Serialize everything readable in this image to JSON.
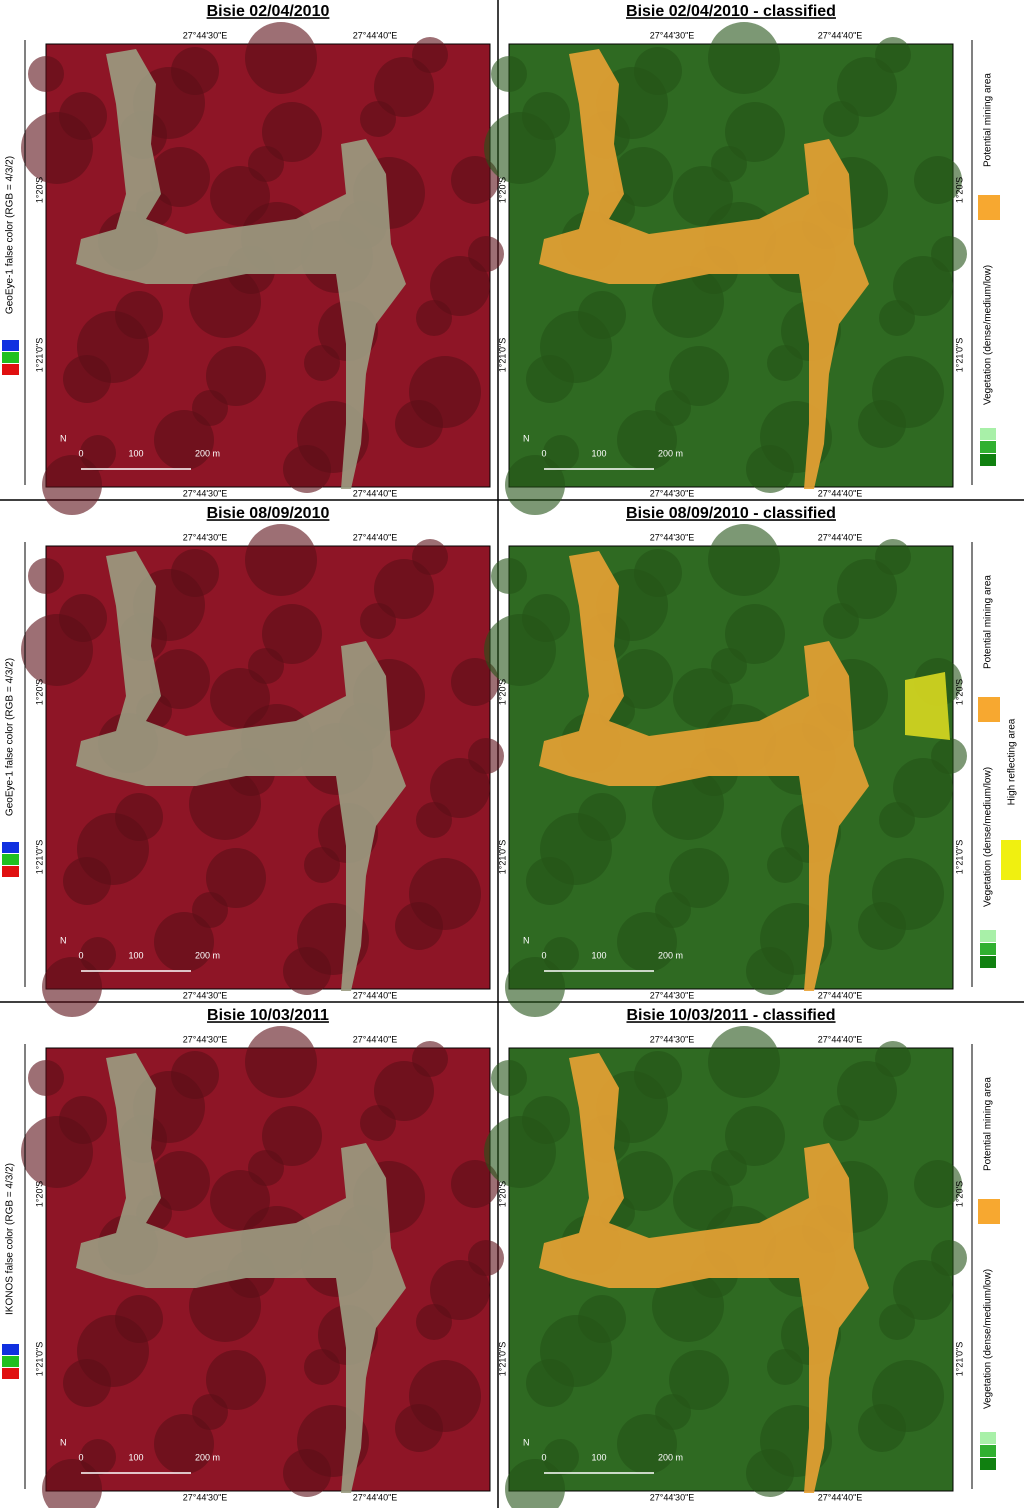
{
  "rows": [
    {
      "left": {
        "title": "Bisie 02/04/2010",
        "sensor": "GeoEye-1 false color (RGB = 4/3/2)"
      },
      "right": {
        "title": "Bisie 02/04/2010 - classified",
        "legend": [
          "Potential mining area",
          "Vegetation (dense/medium/low)"
        ]
      }
    },
    {
      "left": {
        "title": "Bisie 08/09/2010",
        "sensor": "GeoEye-1 false color (RGB = 4/3/2)"
      },
      "right": {
        "title": "Bisie 08/09/2010 - classified",
        "legend": [
          "Potential mining area",
          "Vegetation (dense/medium/low)",
          "High reflecting area"
        ]
      }
    },
    {
      "left": {
        "title": "Bisie 10/03/2011",
        "sensor": "IKONOS false color (RGB = 4/3/2)"
      },
      "right": {
        "title": "Bisie 10/03/2011 - classified",
        "legend": [
          "Potential mining area",
          "Vegetation (dense/medium/low)"
        ]
      }
    }
  ],
  "coordinates": {
    "lon": [
      "27°44'30\"E",
      "27°44'40\"E"
    ],
    "lat": [
      "1°20'S",
      "1°21'0\"S"
    ]
  },
  "scale_bar": {
    "north": "N",
    "labels": [
      "0",
      "100",
      "200 m"
    ]
  }
}
